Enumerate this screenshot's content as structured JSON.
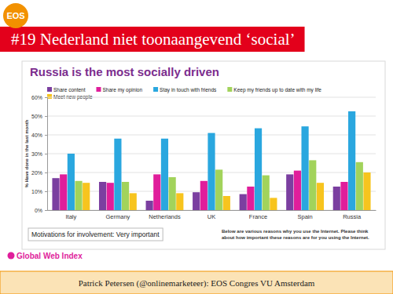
{
  "slide": {
    "heading": "#19 Nederland niet toonaangevend ‘social’",
    "logo": "EOS",
    "source": "Global Web Index",
    "footer": "Patrick Petersen (@onlinemarketeer): EOS Congres VU Amsterdam"
  },
  "chart_data": {
    "type": "bar",
    "title": "Russia is the most socially driven",
    "ylabel": "% Have done in the last month",
    "annotations": [
      "Motivations for involvement: Very important",
      "Below are various reasons why you use the Internet. Please think about how important these reasons are for you using the Internet."
    ],
    "categories": [
      "Italy",
      "Germany",
      "Netherlands",
      "UK",
      "France",
      "Spain",
      "Russia"
    ],
    "series": [
      {
        "name": "Share content",
        "color": "#7b3fa0",
        "values": [
          17,
          15,
          5,
          9.5,
          8.5,
          19,
          12.5
        ]
      },
      {
        "name": "Share my opinion",
        "color": "#e01e9b",
        "values": [
          19,
          14.5,
          19,
          15.5,
          12.5,
          21,
          15
        ]
      },
      {
        "name": "Stay in touch with friends",
        "color": "#2aa7df",
        "values": [
          30,
          38,
          38,
          41,
          43.5,
          44.5,
          52.5
        ]
      },
      {
        "name": "Keep my friends up to date with my life",
        "color": "#a2d35b",
        "values": [
          15.5,
          15,
          17.5,
          21.5,
          18.5,
          26.5,
          25.5
        ]
      },
      {
        "name": "Meet new people",
        "color": "#f7c41e",
        "values": [
          14.5,
          9,
          9,
          7.5,
          6.5,
          14.5,
          20
        ]
      }
    ],
    "ylim": [
      0,
      60
    ],
    "yticks": [
      {
        "value": 0,
        "label": "0%"
      },
      {
        "value": 10,
        "label": "10%"
      },
      {
        "value": 20,
        "label": "20%"
      },
      {
        "value": 30,
        "label": "30%"
      },
      {
        "value": 40,
        "label": "40%"
      },
      {
        "value": 50,
        "label": "50%"
      },
      {
        "value": 60,
        "label": "60%"
      }
    ],
    "grid": true,
    "legend": "top"
  }
}
